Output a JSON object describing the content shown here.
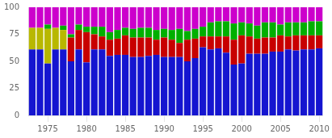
{
  "chart_data": {
    "type": "bar",
    "stacked": true,
    "grid": "x",
    "categories": [
      null,
      null,
      "1975",
      null,
      null,
      null,
      null,
      "1980",
      null,
      null,
      null,
      null,
      "1985",
      null,
      null,
      null,
      null,
      "1990",
      null,
      null,
      null,
      null,
      "1995",
      null,
      null,
      null,
      null,
      "2000",
      null,
      null,
      null,
      null,
      "2005",
      null,
      null,
      null,
      null,
      "2010"
    ],
    "series": [
      {
        "color": "#1515d0",
        "values": [
          61,
          61,
          48,
          61,
          61,
          50,
          61,
          49,
          61,
          61,
          55,
          56,
          56,
          54,
          54,
          55,
          56,
          54,
          54,
          54,
          50,
          53,
          63,
          61,
          62,
          58,
          47,
          48,
          57,
          57,
          57,
          59,
          59,
          61,
          60,
          61,
          61,
          62
        ]
      },
      {
        "color": "#b8b800",
        "values": [
          20,
          20,
          32,
          20,
          18,
          0,
          0,
          0,
          0,
          0,
          0,
          0,
          0,
          0,
          0,
          0,
          0,
          0,
          0,
          0,
          0,
          0,
          0,
          0,
          0,
          0,
          0,
          0,
          0,
          0,
          0,
          0,
          0,
          0,
          0,
          0,
          0,
          0
        ]
      },
      {
        "color": "#c80000",
        "values": [
          0,
          0,
          0,
          0,
          0,
          22,
          18,
          28,
          14,
          12,
          15,
          15,
          18,
          18,
          18,
          17,
          14,
          18,
          16,
          13,
          20,
          18,
          10,
          12,
          11,
          15,
          23,
          26,
          16,
          14,
          15,
          13,
          15,
          12,
          14,
          13,
          13,
          12
        ]
      },
      {
        "color": "#00b000",
        "values": [
          0,
          0,
          4,
          0,
          4,
          3,
          5,
          5,
          7,
          9,
          7,
          8,
          7,
          8,
          9,
          9,
          9,
          8,
          9,
          13,
          8,
          9,
          9,
          13,
          14,
          14,
          15,
          12,
          12,
          12,
          14,
          14,
          10,
          13,
          12,
          12,
          13,
          13
        ]
      },
      {
        "color": "#cc00cc",
        "values": [
          19,
          19,
          16,
          19,
          17,
          25,
          16,
          18,
          18,
          18,
          23,
          21,
          19,
          20,
          19,
          19,
          21,
          20,
          21,
          20,
          22,
          20,
          18,
          14,
          13,
          13,
          15,
          14,
          15,
          17,
          14,
          14,
          16,
          14,
          14,
          14,
          13,
          13
        ]
      }
    ],
    "ylim": [
      0,
      100
    ],
    "yticks": [
      0,
      25,
      50,
      75,
      100
    ]
  }
}
